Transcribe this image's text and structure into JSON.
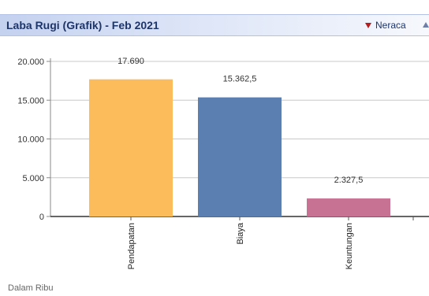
{
  "header": {
    "title": "Laba Rugi (Grafik) - Feb 2021",
    "nav_label": "Neraca",
    "nav_icon": "triangle-down-icon",
    "collapse_icon": "triangle-up-icon"
  },
  "chart_data": {
    "type": "bar",
    "categories": [
      "Pendapatan",
      "Biaya",
      "Keuntungan"
    ],
    "values": [
      17690,
      15362.5,
      2327.5
    ],
    "value_labels": [
      "17.690",
      "15.362,5",
      "2.327,5"
    ],
    "colors": [
      "#fdbc5c",
      "#5b7fb1",
      "#c87293"
    ],
    "ylim": [
      0,
      20000
    ],
    "yticks": [
      0,
      5000,
      10000,
      15000,
      20000
    ],
    "ytick_labels": [
      "0",
      "5.000",
      "10.000",
      "15.000",
      "20.000"
    ],
    "grid": true,
    "title": "",
    "xlabel": "",
    "ylabel": ""
  },
  "footnote": "Dalam Ribu"
}
